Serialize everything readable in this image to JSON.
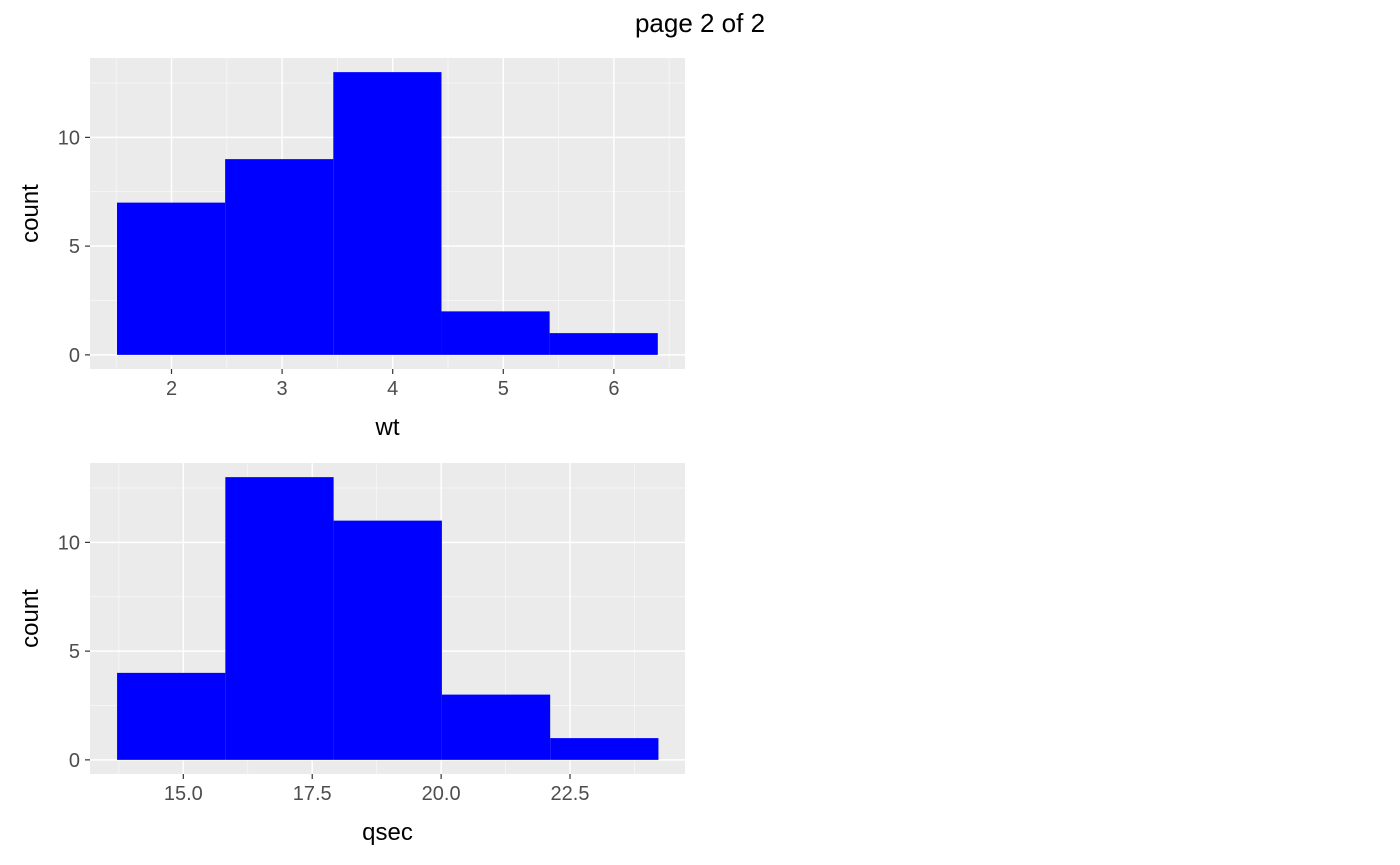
{
  "page_title": "page 2 of 2",
  "colors": {
    "bar": "#0000ff",
    "panel": "#ebebeb",
    "grid_major": "#ffffff",
    "grid_minor": "#f5f5f5",
    "tick_text": "#4d4d4d",
    "axis_text": "#000000"
  },
  "chart_data": [
    {
      "type": "bar",
      "subtype": "histogram",
      "xlabel": "wt",
      "ylabel": "count",
      "xlim": [
        1.263,
        6.643
      ],
      "ylim": [
        -0.65,
        13.65
      ],
      "x_ticks": [
        2,
        3,
        4,
        5,
        6
      ],
      "x_tick_labels": [
        "2",
        "3",
        "4",
        "5",
        "6"
      ],
      "y_ticks": [
        0,
        5,
        10
      ],
      "y_tick_labels": [
        "0",
        "5",
        "10"
      ],
      "bins": [
        {
          "xmin": 1.507,
          "xmax": 2.485,
          "count": 7
        },
        {
          "xmin": 2.485,
          "xmax": 3.463,
          "count": 9
        },
        {
          "xmin": 3.463,
          "xmax": 4.441,
          "count": 13
        },
        {
          "xmin": 4.441,
          "xmax": 5.419,
          "count": 2
        },
        {
          "xmin": 5.419,
          "xmax": 6.397,
          "count": 1
        }
      ],
      "grid": true
    },
    {
      "type": "bar",
      "subtype": "histogram",
      "xlabel": "qsec",
      "ylabel": "count",
      "xlim": [
        13.19,
        24.73
      ],
      "ylim": [
        -0.65,
        13.65
      ],
      "x_ticks": [
        15.0,
        17.5,
        20.0,
        22.5
      ],
      "x_tick_labels": [
        "15.0",
        "17.5",
        "20.0",
        "22.5"
      ],
      "y_ticks": [
        0,
        5,
        10
      ],
      "y_tick_labels": [
        "0",
        "5",
        "10"
      ],
      "bins": [
        {
          "xmin": 13.715,
          "xmax": 15.815,
          "count": 4
        },
        {
          "xmin": 15.815,
          "xmax": 17.915,
          "count": 13
        },
        {
          "xmin": 17.915,
          "xmax": 20.015,
          "count": 11
        },
        {
          "xmin": 20.015,
          "xmax": 22.115,
          "count": 3
        },
        {
          "xmin": 22.115,
          "xmax": 24.215,
          "count": 1
        }
      ],
      "grid": true
    }
  ]
}
